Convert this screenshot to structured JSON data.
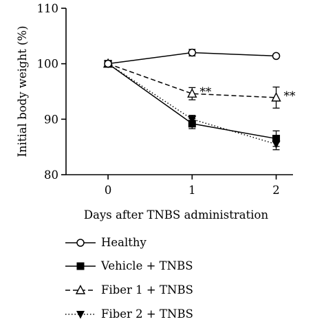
{
  "chart_data": {
    "type": "line",
    "xlabel": "Days after TNBS administration",
    "ylabel": "Initial body weight (%)",
    "x": [
      0,
      1,
      2
    ],
    "x_ticks": [
      "0",
      "1",
      "2"
    ],
    "xlim": [
      -0.5,
      2.2
    ],
    "ylim": [
      80,
      110
    ],
    "y_ticks": [
      "80",
      "90",
      "100",
      "110"
    ],
    "grid": false,
    "legend_position": "bottom",
    "series": [
      {
        "name": "Healthy",
        "values": [
          100,
          102,
          101.4
        ],
        "errors": [
          0,
          0.6,
          0
        ],
        "marker": "circle-open",
        "line": "solid",
        "annotations": [
          "",
          "",
          ""
        ]
      },
      {
        "name": "Vehicle + TNBS",
        "values": [
          100,
          89.2,
          86.5
        ],
        "errors": [
          0,
          0.9,
          1.4
        ],
        "marker": "square-filled",
        "line": "solid",
        "annotations": [
          "",
          "",
          ""
        ]
      },
      {
        "name": "Fiber 1 + TNBS",
        "values": [
          100,
          94.6,
          93.9
        ],
        "errors": [
          0,
          1.1,
          1.9
        ],
        "marker": "triangle-open",
        "line": "dashed",
        "annotations": [
          "",
          "**",
          "**"
        ]
      },
      {
        "name": "Fiber 2 + TNBS",
        "values": [
          100,
          90,
          85.5
        ],
        "errors": [
          0,
          0.7,
          1
        ],
        "marker": "triangle-down-filled",
        "line": "dotted",
        "annotations": [
          "",
          "",
          ""
        ]
      }
    ]
  }
}
